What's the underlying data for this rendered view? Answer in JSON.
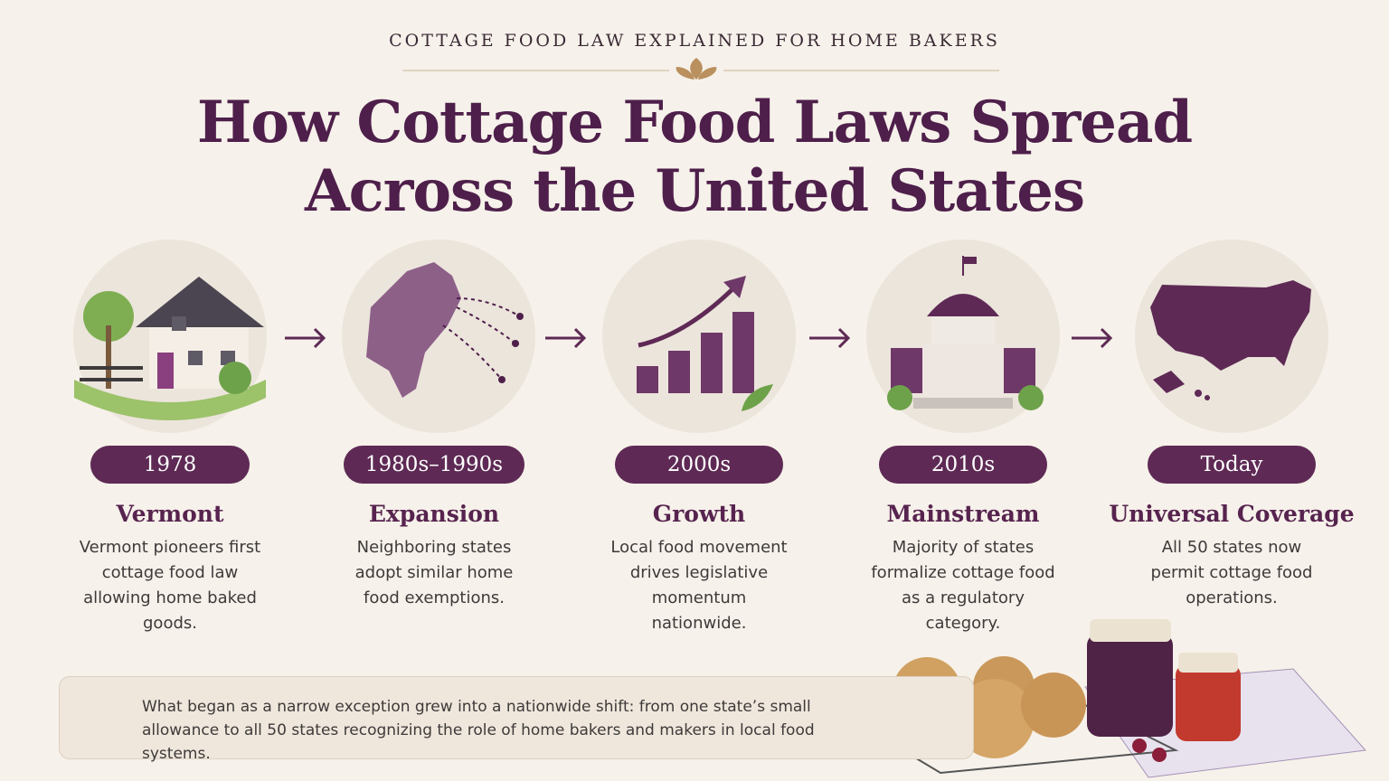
{
  "header": {
    "kicker": "COTTAGE FOOD LAW EXPLAINED FOR HOME BAKERS",
    "title_lines": [
      "How Cottage Food Laws Spread",
      "Across the United States"
    ]
  },
  "steps": [
    {
      "period": "1978",
      "title": "Vermont",
      "description": "Vermont pioneers first cottage food law allowing home baked goods."
    },
    {
      "period": "1980s–1990s",
      "title": "Expansion",
      "description": "Neighboring states adopt similar home food exemptions."
    },
    {
      "period": "2000s",
      "title": "Growth",
      "description": "Local food movement drives legislative momentum nationwide."
    },
    {
      "period": "2010s",
      "title": "Mainstream",
      "description": "Majority of states formalize cottage food as a regulatory category."
    },
    {
      "period": "Today",
      "title": "Universal Coverage",
      "description": "All 50 states now permit cottage food operations."
    }
  ],
  "footer": {
    "text": "What began as a narrow exception grew into a nationwide shift: from one state’s small allowance to all 50 states recognizing the role of home bakers and makers in local food systems."
  }
}
